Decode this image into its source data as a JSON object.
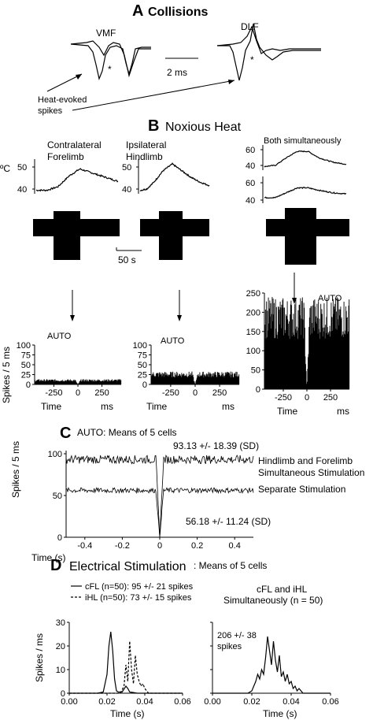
{
  "panel_a": {
    "letter": "A",
    "title": "Collisions",
    "label_vmf": "VMF",
    "label_dlf": "DLF",
    "scale_label": "2 ms",
    "asterisk": "*",
    "heat_label_1": "Heat-evoked",
    "heat_label_2": "spikes"
  },
  "panel_b": {
    "letter": "B",
    "title": "Noxious Heat",
    "col1_title_1": "Contralateral",
    "col1_title_2": "Forelimb",
    "col2_title_1": "Ipsilateral",
    "col2_title_2": "Hindlimb",
    "col3_title": "Both simultaneously",
    "temp_unit": "ºC",
    "scale_label": "50 s",
    "auto_label": "AUTO",
    "ylabel": "Spikes / 5 ms",
    "xlabel_time": "Time",
    "xlabel_ms": "ms"
  },
  "panel_c": {
    "letter": "C",
    "title": "AUTO: Means of 5 cells",
    "ylabel": "Spikes / 5 ms",
    "xlabel": "Time (s)",
    "top_stat": "93.13 +/- 18.39 (SD)",
    "bottom_stat": "56.18 +/- 11.24 (SD)",
    "top_label_1": "Hindlimb and Forelimb",
    "top_label_2": "Simultaneous Stimulation",
    "bottom_label": "Separate Stimulation"
  },
  "panel_d": {
    "letter": "D",
    "title": "Electrical Stimulation",
    "subtitle": ": Means of 5 cells",
    "ylabel": "Spikes / ms",
    "xlabel": "Time (s)",
    "legend_cfl": "cFL (n=50): 95 +/- 21 spikes",
    "legend_ihl": "iHL (n=50): 73 +/- 15 spikes",
    "right_title_1": "cFL and iHL",
    "right_title_2": "Simultaneously (n = 50)",
    "right_stat_1": "206 +/- 38",
    "right_stat_2": "spikes"
  },
  "chart_data": [
    {
      "type": "line",
      "panel": "A",
      "series": [
        {
          "name": "VMF"
        },
        {
          "name": "DLF"
        }
      ],
      "scale_bar": "2 ms"
    },
    {
      "type": "line",
      "panel": "B-temperature",
      "ylabel": "ºC",
      "series": [
        {
          "name": "Contralateral Forelimb",
          "yticks": [
            40,
            50
          ],
          "x": [
            0,
            40,
            80,
            120,
            160,
            200,
            240,
            280,
            300
          ],
          "y": [
            38,
            38,
            40,
            46,
            50,
            48,
            46,
            44,
            43
          ]
        },
        {
          "name": "Ipsilateral Hindlimb",
          "yticks": [
            40,
            50
          ],
          "x": [
            0,
            30,
            60,
            100,
            140,
            180,
            220,
            260,
            300
          ],
          "y": [
            38,
            39,
            43,
            50,
            54,
            50,
            46,
            43,
            41
          ]
        },
        {
          "name": "Both simultaneously (upper)",
          "yticks": [
            40,
            60
          ],
          "x": [
            0,
            40,
            80,
            120,
            160,
            200,
            250,
            300
          ],
          "y": [
            40,
            41,
            48,
            54,
            54,
            48,
            44,
            42
          ]
        },
        {
          "name": "Both simultaneously (lower)",
          "yticks": [
            40,
            60
          ],
          "x": [
            0,
            40,
            80,
            120,
            160,
            200,
            250,
            300
          ],
          "y": [
            40,
            40,
            44,
            48,
            48,
            46,
            44,
            43
          ]
        }
      ],
      "scale_bar": "50 s"
    },
    {
      "type": "bar",
      "panel": "B-autocorrelograms",
      "label": "AUTO",
      "xlabel": "Time",
      "xunit": "ms",
      "ylabel": "Spikes / 5 ms",
      "xlim": [
        -450,
        450
      ],
      "xticks": [
        -250,
        0,
        250
      ],
      "series": [
        {
          "name": "Contralateral Forelimb",
          "ylim": [
            0,
            100
          ],
          "yticks": [
            0,
            25,
            50,
            75,
            100
          ],
          "baseline_mean": 10,
          "trough_at": 0
        },
        {
          "name": "Ipsilateral Hindlimb",
          "ylim": [
            0,
            100
          ],
          "yticks": [
            0,
            25,
            50,
            75,
            100
          ],
          "baseline_mean": 25,
          "trough_at": 0
        },
        {
          "name": "Both simultaneously",
          "ylim": [
            0,
            250
          ],
          "yticks": [
            0,
            50,
            100,
            150,
            200,
            250
          ],
          "baseline_mean": 185,
          "trough_at": 0
        }
      ]
    },
    {
      "type": "line",
      "panel": "C",
      "title": "AUTO: Means of 5 cells",
      "xlabel": "Time (s)",
      "ylabel": "Spikes / 5 ms",
      "xlim": [
        -0.5,
        0.5
      ],
      "ylim": [
        0,
        100
      ],
      "xticks": [
        -0.4,
        -0.2,
        0,
        0.2,
        0.4
      ],
      "yticks": [
        0,
        50,
        100
      ],
      "series": [
        {
          "name": "Hindlimb and Forelimb Simultaneous Stimulation",
          "mean": 93.13,
          "sd": 18.39,
          "trough_x": 0,
          "trough_y": 0
        },
        {
          "name": "Separate Stimulation",
          "mean": 56.18,
          "sd": 11.24,
          "trough_x": 0,
          "trough_y": 0
        }
      ]
    },
    {
      "type": "line",
      "panel": "D-left",
      "xlabel": "Time (s)",
      "ylabel": "Spikes / ms",
      "xlim": [
        0,
        0.06
      ],
      "ylim": [
        0,
        30
      ],
      "xticks": [
        0.0,
        0.02,
        0.04,
        0.06
      ],
      "yticks": [
        0,
        10,
        20,
        30
      ],
      "series": [
        {
          "name": "cFL (n=50): 95 +/- 21 spikes",
          "x": [
            0,
            0.015,
            0.018,
            0.02,
            0.021,
            0.022,
            0.023,
            0.024,
            0.025,
            0.026,
            0.028,
            0.03,
            0.031,
            0.032,
            0.034,
            0.036,
            0.04,
            0.06
          ],
          "y": [
            0,
            0,
            0.5,
            8,
            20,
            26,
            18,
            6,
            1,
            0.5,
            0.5,
            3,
            2,
            0.5,
            0.3,
            0,
            0,
            0
          ]
        },
        {
          "name": "iHL (n=50): 73 +/- 15 spikes",
          "x": [
            0,
            0.027,
            0.029,
            0.03,
            0.031,
            0.032,
            0.033,
            0.034,
            0.035,
            0.036,
            0.037,
            0.038,
            0.039,
            0.04,
            0.042,
            0.06
          ],
          "y": [
            0,
            0,
            3,
            12,
            5,
            22,
            10,
            4,
            16,
            8,
            5,
            3,
            4,
            2,
            0,
            0
          ]
        }
      ]
    },
    {
      "type": "line",
      "panel": "D-right",
      "xlabel": "Time (s)",
      "xlim": [
        0,
        0.06
      ],
      "ylim": [
        0,
        30
      ],
      "xticks": [
        0.0,
        0.02,
        0.04,
        0.06
      ],
      "series": [
        {
          "name": "cFL and iHL Simultaneously (n = 50)",
          "x": [
            0,
            0.018,
            0.02,
            0.022,
            0.023,
            0.024,
            0.025,
            0.026,
            0.027,
            0.028,
            0.029,
            0.03,
            0.031,
            0.032,
            0.033,
            0.034,
            0.035,
            0.036,
            0.037,
            0.038,
            0.039,
            0.04,
            0.041,
            0.042,
            0.043,
            0.044,
            0.046,
            0.06
          ],
          "y": [
            0,
            0,
            1,
            5,
            8,
            6,
            10,
            8,
            15,
            24,
            18,
            12,
            22,
            14,
            9,
            16,
            7,
            9,
            5,
            8,
            4,
            5,
            2,
            3,
            1,
            2,
            0,
            0
          ]
        }
      ]
    }
  ]
}
